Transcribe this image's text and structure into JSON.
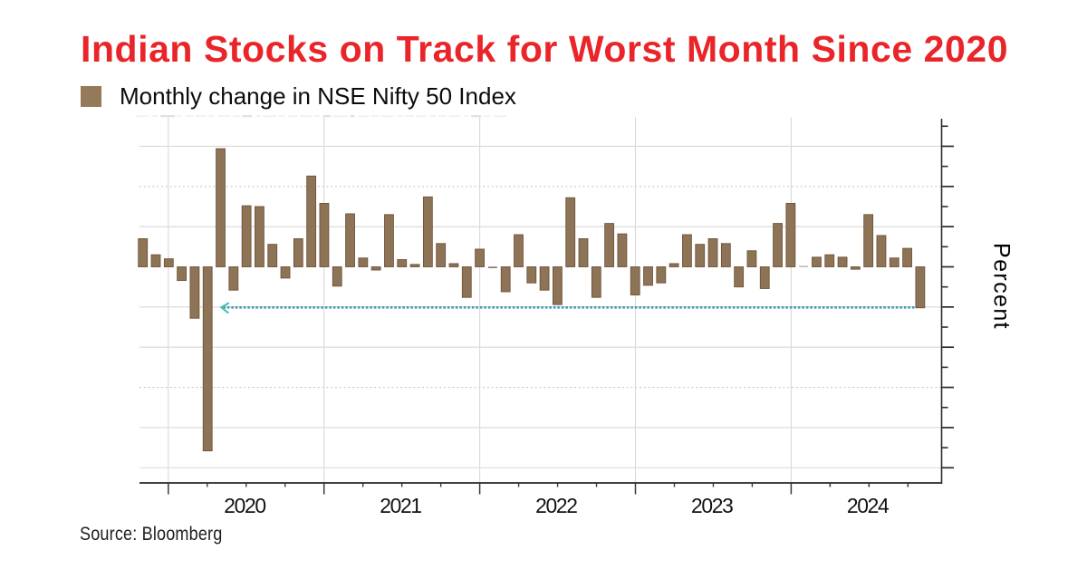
{
  "chart_data": {
    "type": "bar",
    "title": "Indian Stocks on Track for Worst Month Since 2020",
    "legend": "Monthly change in NSE Nifty 50 Index",
    "source": "Source: Bloomberg",
    "ylabel": "Percent",
    "x_tick_labels": [
      "2020",
      "2021",
      "2022",
      "2023",
      "2024"
    ],
    "x": [
      "2019-10",
      "2019-11",
      "2019-12",
      "2020-01",
      "2020-02",
      "2020-03",
      "2020-04",
      "2020-05",
      "2020-06",
      "2020-07",
      "2020-08",
      "2020-09",
      "2020-10",
      "2020-11",
      "2020-12",
      "2021-01",
      "2021-02",
      "2021-03",
      "2021-04",
      "2021-05",
      "2021-06",
      "2021-07",
      "2021-08",
      "2021-09",
      "2021-10",
      "2021-11",
      "2021-12",
      "2022-01",
      "2022-02",
      "2022-03",
      "2022-04",
      "2022-05",
      "2022-06",
      "2022-07",
      "2022-08",
      "2022-09",
      "2022-10",
      "2022-11",
      "2022-12",
      "2023-01",
      "2023-02",
      "2023-03",
      "2023-04",
      "2023-05",
      "2023-06",
      "2023-07",
      "2023-08",
      "2023-09",
      "2023-10",
      "2023-11",
      "2023-12",
      "2024-01",
      "2024-02",
      "2024-03",
      "2024-04",
      "2024-05",
      "2024-06",
      "2024-07",
      "2024-08",
      "2024-09",
      "2024-10"
    ],
    "values": [
      3.5,
      1.5,
      1.0,
      -1.7,
      -6.4,
      -22.9,
      14.7,
      -2.9,
      7.6,
      7.5,
      2.8,
      -1.4,
      3.5,
      11.3,
      7.9,
      -2.4,
      6.6,
      1.1,
      -0.4,
      6.5,
      0.9,
      0.3,
      8.7,
      2.9,
      0.4,
      -3.8,
      2.2,
      -0.1,
      -3.1,
      4.0,
      -2.0,
      -2.9,
      -4.7,
      8.6,
      3.5,
      -3.8,
      5.4,
      4.1,
      -3.5,
      -2.3,
      -2.0,
      0.4,
      4.0,
      2.8,
      3.5,
      2.9,
      -2.5,
      2.0,
      -2.7,
      5.4,
      7.9,
      0.0,
      1.2,
      1.5,
      1.2,
      -0.3,
      6.5,
      3.9,
      1.1,
      2.3,
      -5.1
    ],
    "ylim": [
      -26.9,
      18.6
    ],
    "y_gridlines_pct": [
      15,
      10,
      5,
      -5,
      -10,
      -15,
      -20,
      -25
    ],
    "dotted_gridlines_pct": [
      10,
      -15
    ],
    "annotation": {
      "type": "arrow-line",
      "y_pct": -5.05,
      "note": "dotted line from October 2024 bar pointing left to March 2020 bar",
      "color": "#4498b8",
      "head_color": "#3cc0ae"
    },
    "bar_color": "#8d7457",
    "bar_edge_color": "#6f5338",
    "grid_color": "#d9d9d9",
    "axis_color": "#414141",
    "title_color": "#e92529",
    "legend_swatch_color": "#957a5a"
  }
}
